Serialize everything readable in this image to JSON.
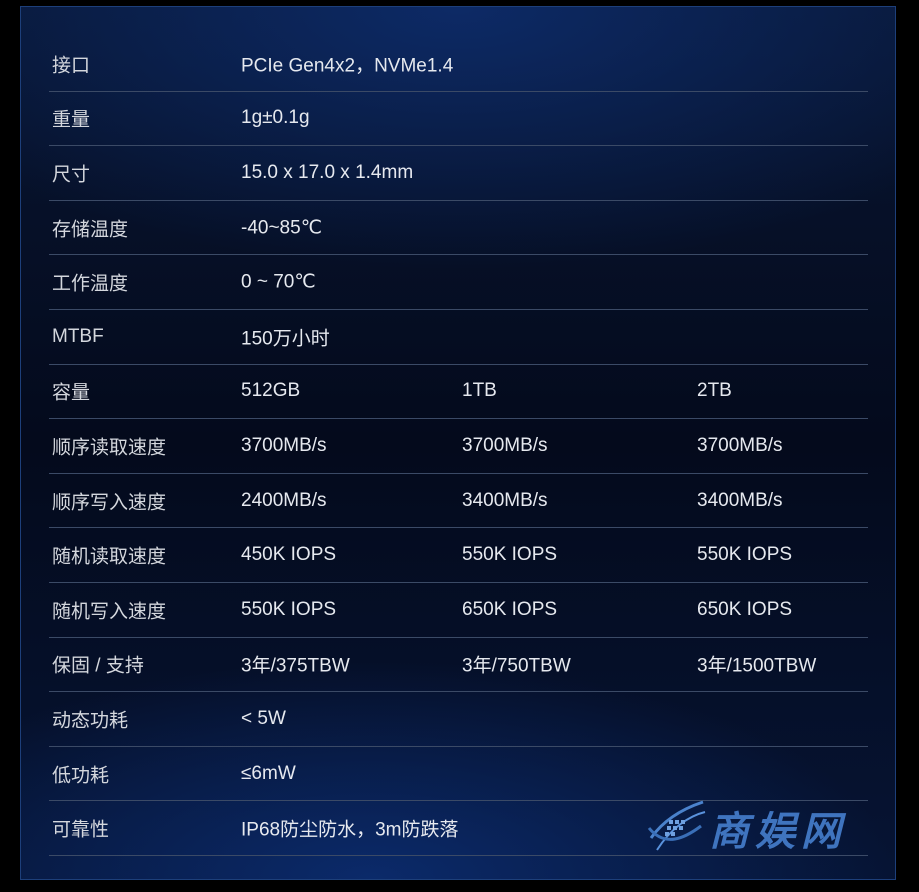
{
  "specs": [
    {
      "label": "接口",
      "values": [
        "PCIe Gen4x2，NVMe1.4"
      ]
    },
    {
      "label": "重量",
      "values": [
        "1g±0.1g"
      ]
    },
    {
      "label": "尺寸",
      "values": [
        "15.0 x 17.0  x 1.4mm"
      ]
    },
    {
      "label": "存储温度",
      "values": [
        "-40~85℃"
      ]
    },
    {
      "label": "工作温度",
      "values": [
        "0 ~ 70℃"
      ]
    },
    {
      "label": "MTBF",
      "values": [
        "150万小时"
      ]
    },
    {
      "label": "容量",
      "values": [
        "512GB",
        "1TB",
        "2TB"
      ]
    },
    {
      "label": "顺序读取速度",
      "values": [
        "3700MB/s",
        "3700MB/s",
        "3700MB/s"
      ]
    },
    {
      "label": "顺序写入速度",
      "values": [
        "2400MB/s",
        "3400MB/s",
        "3400MB/s"
      ]
    },
    {
      "label": "随机读取速度",
      "values": [
        "450K IOPS",
        "550K IOPS",
        "550K IOPS"
      ]
    },
    {
      "label": "随机写入速度",
      "values": [
        "550K IOPS",
        "650K IOPS",
        "650K IOPS"
      ]
    },
    {
      "label": "保固 / 支持",
      "values": [
        "3年/375TBW",
        "3年/750TBW",
        "3年/1500TBW"
      ]
    },
    {
      "label": "动态功耗",
      "values": [
        " < 5W"
      ]
    },
    {
      "label": "低功耗",
      "values": [
        "≤6mW"
      ]
    },
    {
      "label": "可靠性",
      "values": [
        "IP68防尘防水，3m防跌落"
      ]
    }
  ],
  "watermark": {
    "text": "商娱网",
    "color": "#3f74bf"
  }
}
